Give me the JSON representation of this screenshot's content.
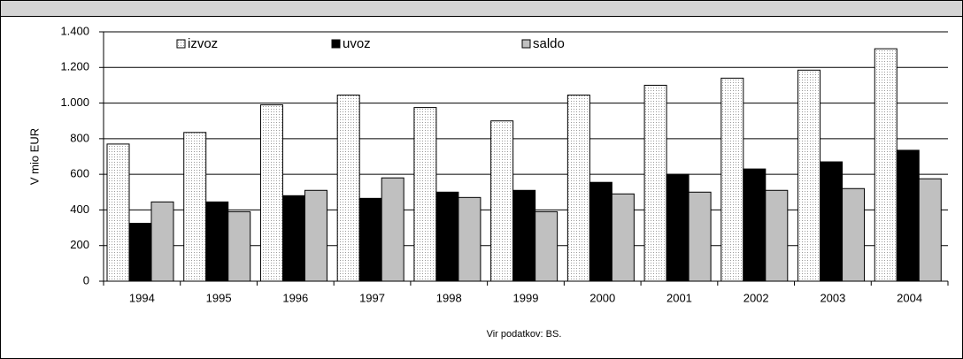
{
  "chart_data": {
    "type": "bar",
    "y_label": "V  mio EUR",
    "source": "Vir podatkov: BS.",
    "categories": [
      "1994",
      "1995",
      "1996",
      "1997",
      "1998",
      "1999",
      "2000",
      "2001",
      "2002",
      "2003",
      "2004"
    ],
    "series": [
      {
        "name": "izvoz",
        "color": "#f2f2f2",
        "values": [
          770,
          835,
          990,
          1045,
          975,
          900,
          1045,
          1100,
          1140,
          1185,
          1305
        ]
      },
      {
        "name": "uvoz",
        "color": "#000000",
        "values": [
          325,
          445,
          480,
          465,
          500,
          510,
          555,
          600,
          630,
          670,
          735
        ]
      },
      {
        "name": "saldo",
        "color": "#c0c0c0",
        "values": [
          445,
          390,
          510,
          580,
          470,
          390,
          490,
          500,
          510,
          520,
          575
        ]
      }
    ],
    "ylim": [
      0,
      1400
    ],
    "yticks": [
      0,
      200,
      400,
      600,
      800,
      {
        "value": 1000,
        "label": "1.000"
      },
      {
        "value": 1200,
        "label": "1.200"
      },
      {
        "value": 1400,
        "label": "1.400"
      }
    ],
    "grid": true,
    "legend": "top"
  }
}
